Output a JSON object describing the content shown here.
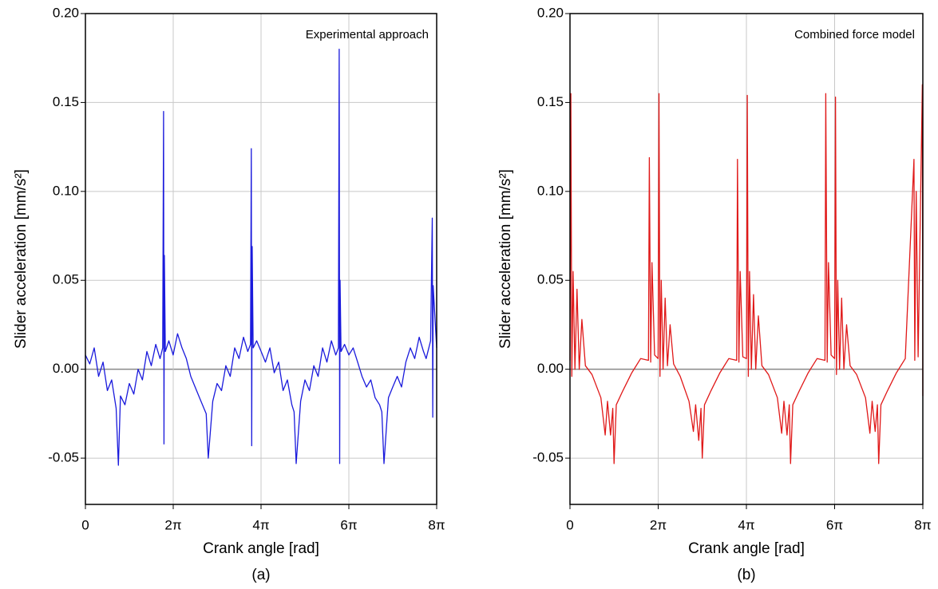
{
  "chart_data": [
    {
      "type": "line",
      "title": "Experimental approach",
      "caption": "(a)",
      "xlabel": "Crank angle [rad]",
      "ylabel": "Slider acceleration [mm/s²]",
      "xlim": [
        0,
        25.1327
      ],
      "xticks": [
        0,
        {
          "value": 6.2832,
          "label": "2π"
        },
        {
          "value": 12.5664,
          "label": "4π"
        },
        {
          "value": 18.8496,
          "label": "6π"
        },
        {
          "value": 25.1327,
          "label": "8π"
        }
      ],
      "ylim": [
        -0.076,
        0.2
      ],
      "yticks": [
        -0.05,
        {
          "value": 0,
          "label": "0.00"
        },
        0.05,
        {
          "value": 0.1,
          "label": "0.10"
        },
        0.15,
        {
          "value": 0.2,
          "label": "0.20"
        }
      ],
      "grid": true,
      "x": [
        0,
        0.31,
        0.63,
        0.94,
        1.26,
        1.57,
        1.88,
        2.2,
        2.36,
        2.51,
        2.83,
        3.14,
        3.46,
        3.77,
        4.08,
        4.4,
        4.71,
        5.03,
        5.34,
        5.53,
        5.59,
        5.62,
        5.65,
        5.72,
        5.97,
        6.28,
        6.59,
        6.91,
        7.22,
        7.54,
        7.85,
        8.16,
        8.48,
        8.64,
        8.79,
        9.11,
        9.42,
        9.74,
        10.05,
        10.36,
        10.68,
        10.99,
        11.31,
        11.62,
        11.81,
        11.87,
        11.9,
        11.93,
        12.0,
        12.25,
        12.57,
        12.88,
        13.2,
        13.51,
        13.83,
        14.14,
        14.45,
        14.77,
        14.93,
        15.08,
        15.4,
        15.71,
        16.03,
        16.34,
        16.65,
        16.97,
        17.28,
        17.6,
        17.91,
        18.1,
        18.16,
        18.19,
        18.22,
        18.29,
        18.54,
        18.85,
        19.16,
        19.48,
        19.79,
        20.11,
        20.42,
        20.73,
        21.05,
        21.21,
        21.36,
        21.68,
        21.99,
        22.31,
        22.62,
        22.93,
        23.25,
        23.56,
        23.88,
        24.19,
        24.38,
        24.7,
        24.82,
        24.85,
        24.88,
        25.13
      ],
      "series": [
        {
          "color": "#1a1adc",
          "values": [
            0.008,
            0.003,
            0.012,
            -0.004,
            0.004,
            -0.012,
            -0.006,
            -0.022,
            -0.054,
            -0.015,
            -0.02,
            -0.008,
            -0.014,
            0,
            -0.006,
            0.01,
            0.002,
            0.014,
            0.006,
            0.012,
            0.145,
            -0.042,
            0.064,
            0.01,
            0.016,
            0.008,
            0.02,
            0.012,
            0.006,
            -0.004,
            -0.01,
            -0.016,
            -0.022,
            -0.025,
            -0.05,
            -0.018,
            -0.008,
            -0.012,
            0.002,
            -0.004,
            0.012,
            0.006,
            0.018,
            0.01,
            0.014,
            0.124,
            -0.043,
            0.069,
            0.012,
            0.016,
            0.01,
            0.004,
            0.012,
            -0.002,
            0.004,
            -0.012,
            -0.006,
            -0.02,
            -0.024,
            -0.053,
            -0.018,
            -0.006,
            -0.012,
            0.002,
            -0.004,
            0.012,
            0.004,
            0.016,
            0.008,
            0.012,
            0.18,
            -0.053,
            0.05,
            0.01,
            0.014,
            0.008,
            0.012,
            0.004,
            -0.004,
            -0.01,
            -0.006,
            -0.016,
            -0.02,
            -0.024,
            -0.053,
            -0.016,
            -0.01,
            -0.004,
            -0.01,
            0.004,
            0.012,
            0.006,
            0.018,
            0.01,
            0.006,
            0.016,
            0.085,
            -0.027,
            0.047,
            0.012
          ]
        }
      ]
    },
    {
      "type": "line",
      "title": "Combined force model",
      "caption": "(b)",
      "xlabel": "Crank angle [rad]",
      "ylabel": "Slider acceleration [mm/s²]",
      "xlim": [
        0,
        25.1327
      ],
      "xticks": [
        0,
        {
          "value": 6.2832,
          "label": "2π"
        },
        {
          "value": 12.5664,
          "label": "4π"
        },
        {
          "value": 18.8496,
          "label": "6π"
        },
        {
          "value": 25.1327,
          "label": "8π"
        }
      ],
      "ylim": [
        -0.076,
        0.2
      ],
      "yticks": [
        -0.05,
        {
          "value": 0,
          "label": "0.00"
        },
        0.05,
        {
          "value": 0.1,
          "label": "0.10"
        },
        0.15,
        {
          "value": 0.2,
          "label": "0.20"
        }
      ],
      "grid": true,
      "x": [
        0,
        0.06,
        0.13,
        0.22,
        0.35,
        0.5,
        0.66,
        0.85,
        1.1,
        1.57,
        2.2,
        2.51,
        2.67,
        2.89,
        3.05,
        3.14,
        3.3,
        3.77,
        4.4,
        5.03,
        5.59,
        5.65,
        5.75,
        5.84,
        6.03,
        6.28,
        6.34,
        6.41,
        6.5,
        6.63,
        6.78,
        6.94,
        7.13,
        7.38,
        7.85,
        8.48,
        8.79,
        8.95,
        9.17,
        9.33,
        9.42,
        9.58,
        10.05,
        10.68,
        11.31,
        11.87,
        11.93,
        12.03,
        12.12,
        12.31,
        12.57,
        12.63,
        12.7,
        12.79,
        12.92,
        13.07,
        13.23,
        13.42,
        13.67,
        14.14,
        14.77,
        15.08,
        15.24,
        15.46,
        15.62,
        15.71,
        15.87,
        16.34,
        16.97,
        17.6,
        18.16,
        18.22,
        18.32,
        18.41,
        18.6,
        18.85,
        18.91,
        18.98,
        19.07,
        19.2,
        19.35,
        19.51,
        19.7,
        19.95,
        20.42,
        21.05,
        21.36,
        21.52,
        21.74,
        21.9,
        21.99,
        22.15,
        22.62,
        23.25,
        23.88,
        24.5,
        24.56,
        24.66,
        24.8,
        25.1,
        25.13
      ],
      "series": [
        {
          "color": "#e01818",
          "values": [
            0.005,
            0.155,
            -0.004,
            0.055,
            0,
            0.045,
            0,
            0.028,
            0.002,
            -0.003,
            -0.016,
            -0.037,
            -0.018,
            -0.037,
            -0.022,
            -0.053,
            -0.02,
            -0.012,
            -0.002,
            0.006,
            0.005,
            0.119,
            0.004,
            0.06,
            0.008,
            0.006,
            0.155,
            -0.004,
            0.05,
            0,
            0.04,
            0.002,
            0.025,
            0.003,
            -0.004,
            -0.018,
            -0.035,
            -0.02,
            -0.04,
            -0.022,
            -0.05,
            -0.02,
            -0.012,
            -0.002,
            0.006,
            0.005,
            0.118,
            0.004,
            0.055,
            0.007,
            0.006,
            0.154,
            -0.004,
            0.055,
            0,
            0.042,
            0,
            0.03,
            0.002,
            -0.003,
            -0.016,
            -0.036,
            -0.018,
            -0.037,
            -0.02,
            -0.053,
            -0.02,
            -0.012,
            -0.002,
            0.006,
            0.005,
            0.155,
            0.004,
            0.06,
            0.008,
            0.006,
            0.153,
            -0.003,
            0.05,
            0,
            0.04,
            0,
            0.025,
            0.002,
            -0.003,
            -0.016,
            -0.036,
            -0.018,
            -0.035,
            -0.02,
            -0.053,
            -0.02,
            -0.012,
            -0.002,
            0.006,
            0.118,
            0.005,
            0.1,
            0.007,
            0.16,
            -0.015
          ]
        }
      ]
    }
  ]
}
